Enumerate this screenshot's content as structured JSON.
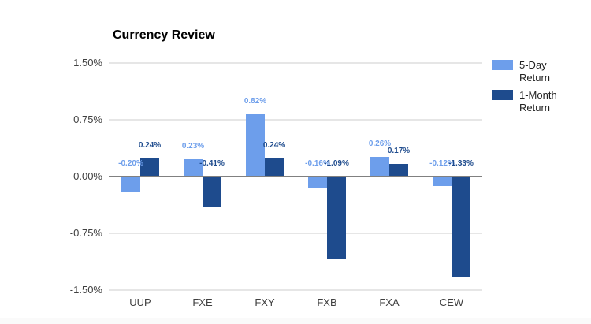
{
  "title": "Currency Review",
  "colors": {
    "five_day": "#6d9eeb",
    "one_month": "#1e4b8d",
    "grid": "#e6e6e6",
    "zero_axis": "#808080",
    "axis_text": "#404040"
  },
  "legend": {
    "items": [
      {
        "label": "5-Day Return",
        "color": "#6d9eeb"
      },
      {
        "label": "1-Month Return",
        "color": "#1e4b8d"
      }
    ]
  },
  "chart_data": {
    "type": "bar",
    "title": "Currency Review",
    "categories": [
      "UUP",
      "FXE",
      "FXY",
      "FXB",
      "FXA",
      "CEW"
    ],
    "series": [
      {
        "name": "5-Day Return",
        "color": "#6d9eeb",
        "values": [
          -0.2,
          0.23,
          0.82,
          -0.16,
          0.26,
          -0.12
        ],
        "labels": [
          "-0.20%",
          "0.23%",
          "0.82%",
          "-0.16%",
          "0.26%",
          "-0.12%"
        ]
      },
      {
        "name": "1-Month Return",
        "color": "#1e4b8d",
        "values": [
          0.24,
          -0.41,
          0.24,
          -1.09,
          0.17,
          -1.33
        ],
        "labels": [
          "0.24%",
          "-0.41%",
          "0.24%",
          "-1.09%",
          "0.17%",
          "-1.33%"
        ]
      }
    ],
    "y_axis": {
      "tick_labels": [
        "1.50%",
        "0.75%",
        "0.00%",
        "-0.75%",
        "-1.50%"
      ],
      "tick_values": [
        1.5,
        0.75,
        0,
        -0.75,
        -1.5
      ],
      "min": -1.5,
      "max": 1.5
    },
    "grid": true,
    "legend_position": "right-top",
    "value_labels_shown": true
  }
}
